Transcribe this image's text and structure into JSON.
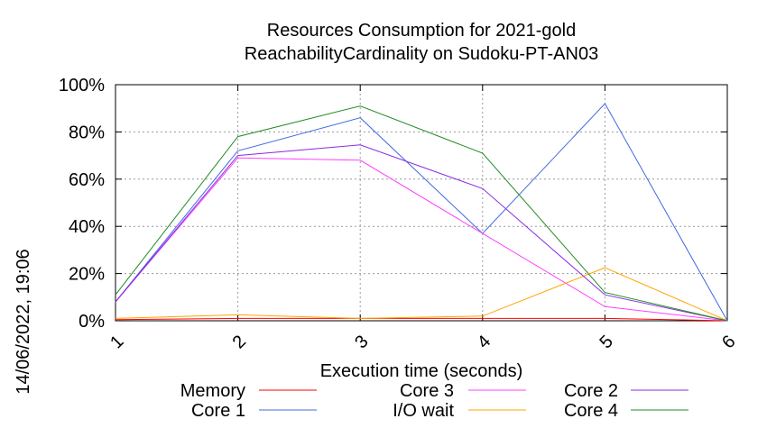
{
  "chart_data": {
    "type": "line",
    "title_line1": "Resources Consumption for 2021-gold",
    "title_line2": "ReachabilityCardinality on Sudoku-PT-AN03",
    "xlabel": "Execution time (seconds)",
    "side_label": "14/06/2022, 19:06",
    "x": [
      1,
      2,
      3,
      4,
      5,
      6
    ],
    "xlim": [
      1,
      6
    ],
    "ylim": [
      0,
      100
    ],
    "yticks": [
      "0%",
      "20%",
      "40%",
      "60%",
      "80%",
      "100%"
    ],
    "xticks": [
      "1",
      "2",
      "3",
      "4",
      "5",
      "6"
    ],
    "grid": true,
    "legend_position": "bottom",
    "series": [
      {
        "name": "Memory",
        "color": "#ff0000",
        "values": [
          0.5,
          1,
          1,
          1,
          1,
          0
        ]
      },
      {
        "name": "Core 1",
        "color": "#4169e1",
        "values": [
          8,
          72,
          86,
          37,
          92,
          0
        ]
      },
      {
        "name": "Core 3",
        "color": "#ff40ff",
        "values": [
          8,
          69,
          68,
          37,
          6,
          0
        ]
      },
      {
        "name": "I/O wait",
        "color": "#ffa500",
        "values": [
          1,
          2.5,
          1,
          2,
          22.5,
          0
        ]
      },
      {
        "name": "Core 2",
        "color": "#8a2be2",
        "values": [
          8,
          70,
          74.5,
          56,
          11,
          0
        ]
      },
      {
        "name": "Core 4",
        "color": "#228b22",
        "values": [
          11,
          78,
          91,
          71,
          12,
          0
        ]
      }
    ]
  }
}
